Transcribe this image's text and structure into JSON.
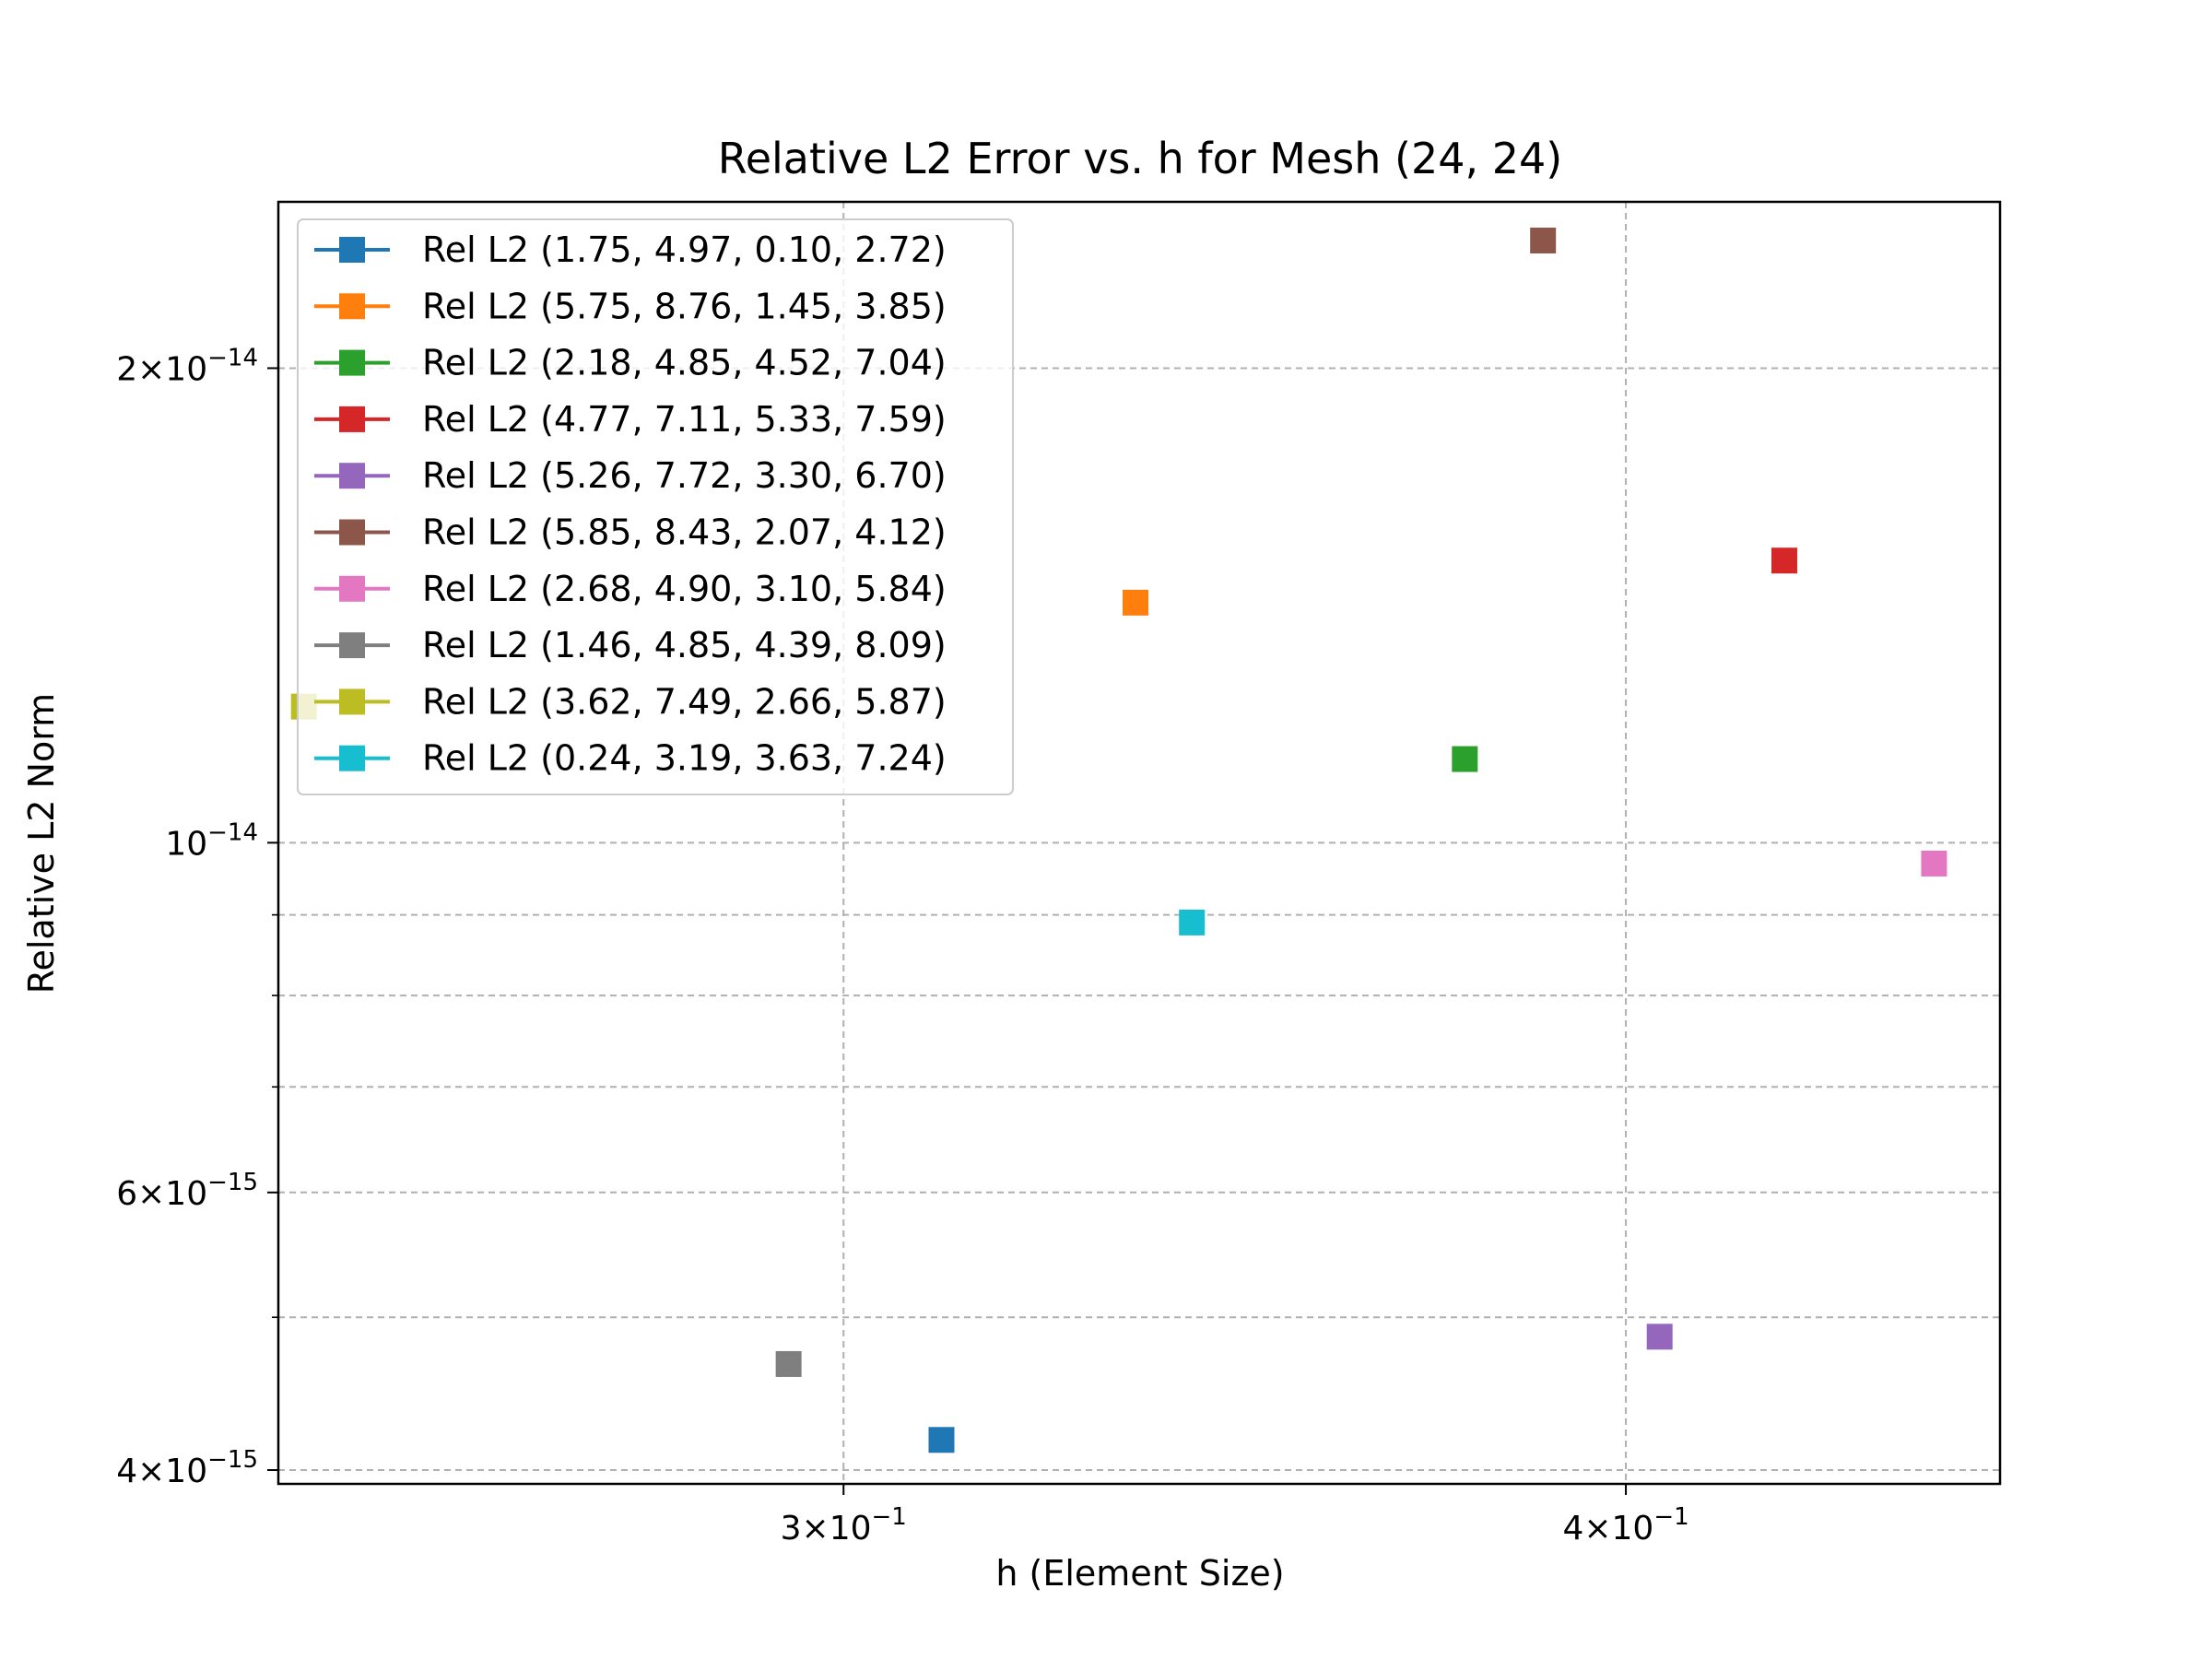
{
  "chart_data": {
    "type": "scatter",
    "title": "Relative L2 Error vs. h for Mesh (24, 24)",
    "xlabel": "h (Element Size)",
    "ylabel": "Relative L2 Norm",
    "xscale": "log",
    "yscale": "log",
    "xlim": [
      0.2437,
      0.459
    ],
    "ylim": [
      3.92e-15,
      2.55e-14
    ],
    "xticks": [
      {
        "value": 0.3,
        "label_base": "3×10",
        "label_exp": "−1"
      },
      {
        "value": 0.4,
        "label_base": "4×10",
        "label_exp": "−1"
      }
    ],
    "yticks": [
      {
        "value": 4e-15,
        "label_base": "4×10",
        "label_exp": "−15"
      },
      {
        "value": 6e-15,
        "label_base": "6×10",
        "label_exp": "−15"
      },
      {
        "value": 1e-14,
        "label_base": "10",
        "label_exp": "−14"
      },
      {
        "value": 2e-14,
        "label_base": "2×10",
        "label_exp": "−14"
      }
    ],
    "yminor_grid": [
      5e-15,
      7e-15,
      8e-15,
      9e-15
    ],
    "grid": true,
    "grid_style": "dashed",
    "legend_position": "upper-left",
    "marker": "square",
    "series": [
      {
        "name": "Rel L2 (1.75, 4.97, 0.10, 2.72)",
        "color": "#1f77b4",
        "x": 0.311,
        "y": 4.18e-15
      },
      {
        "name": "Rel L2 (5.75, 8.76, 1.45, 3.85)",
        "color": "#ff7f0e",
        "x": 0.334,
        "y": 1.42e-14
      },
      {
        "name": "Rel L2 (2.18, 4.85, 4.52, 7.04)",
        "color": "#2ca02c",
        "x": 0.377,
        "y": 1.13e-14
      },
      {
        "name": "Rel L2 (4.77, 7.11, 5.33, 7.59)",
        "color": "#d62728",
        "x": 0.424,
        "y": 1.51e-14
      },
      {
        "name": "Rel L2 (5.26, 7.72, 3.30, 6.70)",
        "color": "#9467bd",
        "x": 0.405,
        "y": 4.86e-15
      },
      {
        "name": "Rel L2 (5.85, 8.43, 2.07, 4.12)",
        "color": "#8c564b",
        "x": 0.388,
        "y": 2.41e-14
      },
      {
        "name": "Rel L2 (2.68, 4.90, 3.10, 5.84)",
        "color": "#e377c2",
        "x": 0.448,
        "y": 9.7e-15
      },
      {
        "name": "Rel L2 (1.46, 4.85, 4.39, 8.09)",
        "color": "#7f7f7f",
        "x": 0.294,
        "y": 4.67e-15
      },
      {
        "name": "Rel L2 (3.62, 7.49, 2.66, 5.87)",
        "color": "#bcbd22",
        "x": 0.246,
        "y": 1.22e-14
      },
      {
        "name": "Rel L2 (0.24, 3.19, 3.63, 7.24)",
        "color": "#17becf",
        "x": 0.341,
        "y": 8.9e-15
      }
    ]
  }
}
